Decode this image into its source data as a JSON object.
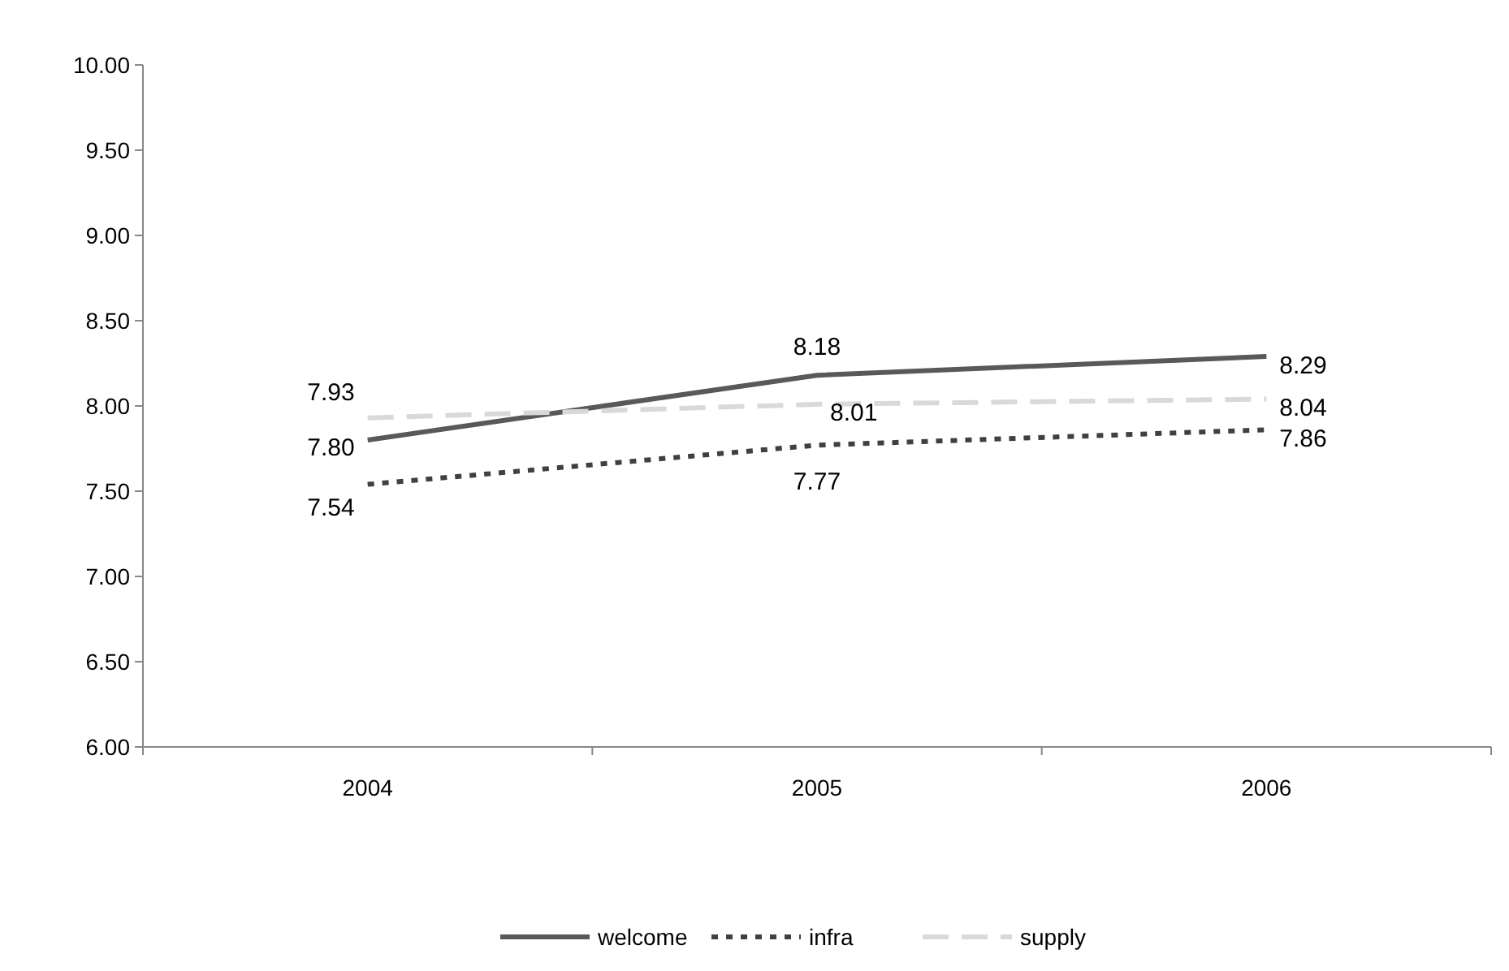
{
  "chart_data": {
    "type": "line",
    "categories": [
      "2004",
      "2005",
      "2006"
    ],
    "series": [
      {
        "name": "welcome",
        "color": "#595959",
        "line_style": "solid",
        "values": [
          7.8,
          8.18,
          8.29
        ],
        "value_labels": [
          "7.80",
          "8.18",
          "8.29"
        ]
      },
      {
        "name": "infra",
        "color": "#404040",
        "line_style": "dotted",
        "values": [
          7.54,
          7.77,
          7.86
        ],
        "value_labels": [
          "7.54",
          "7.77",
          "7.86"
        ]
      },
      {
        "name": "supply",
        "color": "#d9d9d9",
        "line_style": "dashed",
        "values": [
          7.93,
          8.01,
          8.04
        ],
        "value_labels": [
          "7.93",
          "8.01",
          "8.04"
        ]
      }
    ],
    "ylim": [
      6,
      10
    ],
    "yticks": [
      {
        "value": 6,
        "label": "6.00"
      },
      {
        "value": 6.5,
        "label": "6.50"
      },
      {
        "value": 7,
        "label": "7.00"
      },
      {
        "value": 7.5,
        "label": "7.50"
      },
      {
        "value": 8,
        "label": "8.00"
      },
      {
        "value": 8.5,
        "label": "8.50"
      },
      {
        "value": 9,
        "label": "9.00"
      },
      {
        "value": 9.5,
        "label": "9.50"
      },
      {
        "value": 10,
        "label": "10.00"
      }
    ],
    "grid": false,
    "legend": "bottom",
    "marker": "none"
  }
}
